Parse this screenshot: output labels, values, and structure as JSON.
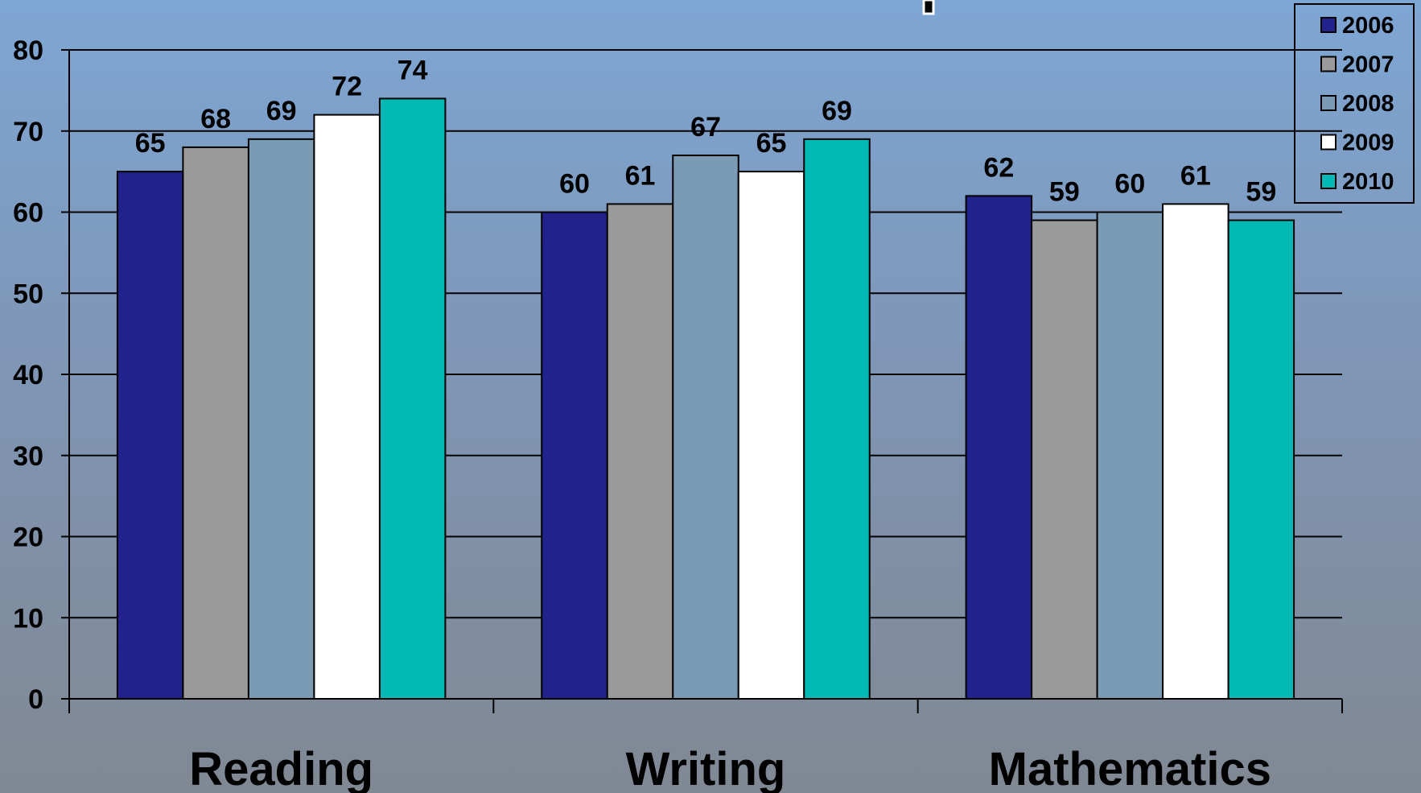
{
  "chart_data": {
    "type": "bar",
    "title": "",
    "xlabel": "",
    "ylabel": "",
    "categories": [
      "Reading",
      "Writing",
      "Mathematics"
    ],
    "series": [
      {
        "name": "2006",
        "color": "#22228c",
        "values": [
          65,
          60,
          62
        ]
      },
      {
        "name": "2007",
        "color": "#9a9a9a",
        "values": [
          68,
          61,
          59
        ]
      },
      {
        "name": "2008",
        "color": "#7b9bb4",
        "values": [
          69,
          67,
          60
        ]
      },
      {
        "name": "2009",
        "color": "#ffffff",
        "values": [
          72,
          65,
          61
        ]
      },
      {
        "name": "2010",
        "color": "#00b8b4",
        "values": [
          74,
          69,
          59
        ]
      }
    ],
    "ylim": [
      0,
      80
    ],
    "yticks": [
      "0",
      "10",
      "20",
      "30",
      "40",
      "50",
      "60",
      "70",
      "80"
    ],
    "grid": true,
    "legend": "top-right",
    "data_labels": true
  }
}
